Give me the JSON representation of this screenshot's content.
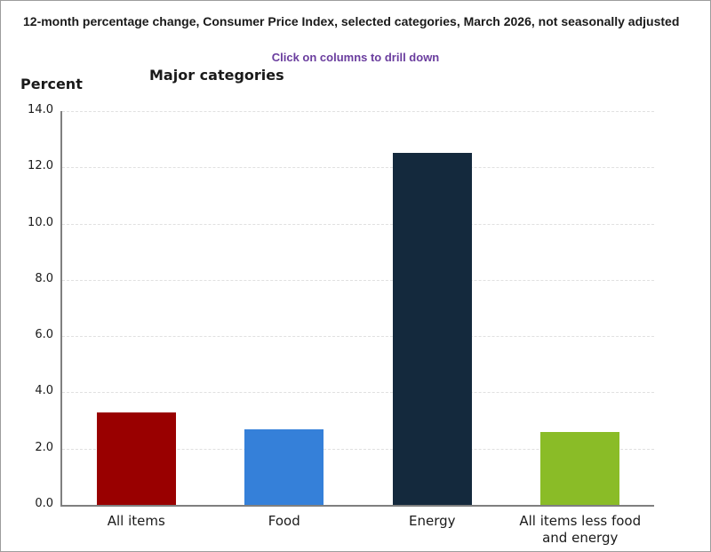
{
  "window": {
    "background": "#ffffff",
    "border_color": "#9d9d9d"
  },
  "header": {
    "title": "12-month percentage change, Consumer Price Index, selected categories, March 2026, not seasonally adjusted",
    "hint": "Click on columns to drill down",
    "hint_color": "#6a3d9e",
    "axis_unit_label": "Percent"
  },
  "chart_data": {
    "type": "bar",
    "title": "Major categories",
    "ylabel": "Percent",
    "categories": [
      "All items",
      "Food",
      "Energy",
      "All items less food and energy"
    ],
    "values": [
      3.3,
      2.7,
      12.5,
      2.6
    ],
    "bar_colors": [
      "#990000",
      "#3580d9",
      "#14293d",
      "#8abc27"
    ],
    "ylim": [
      0,
      14
    ],
    "ytick_step": 2,
    "ytick_labels": [
      "0.0",
      "2.0",
      "4.0",
      "6.0",
      "8.0",
      "10.0",
      "12.0",
      "14.0"
    ],
    "grid": true,
    "legend": "none",
    "interaction": "columns are clickable to drill down"
  }
}
